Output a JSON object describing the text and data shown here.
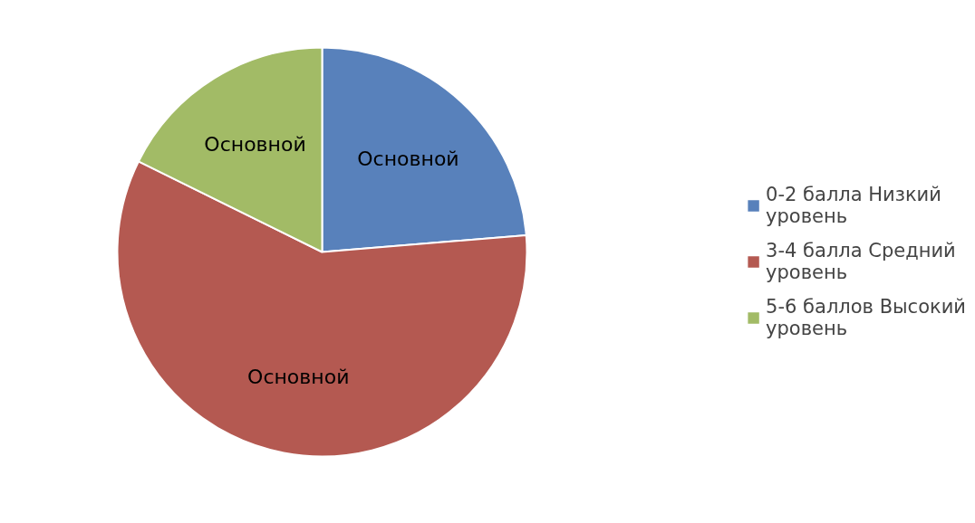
{
  "chart_data": {
    "type": "pie",
    "categories": [
      "0-2 балла Низкий уровень",
      "3-4 балла Средний уровень",
      "5-6 баллов Высокий уровень"
    ],
    "values": [
      23.7,
      58.6,
      17.7
    ],
    "colors": [
      "#5881bb",
      "#b45951",
      "#a2bb66"
    ],
    "value_labels": [
      "Основной",
      "Основной",
      "Основной"
    ],
    "legend": "right"
  }
}
